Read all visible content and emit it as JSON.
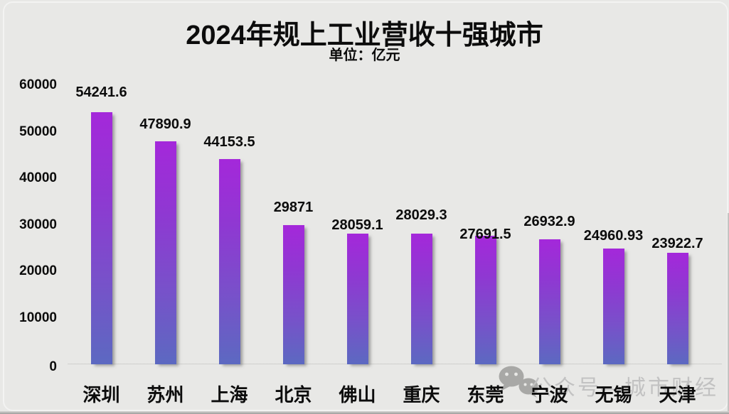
{
  "watermark": "公众号—城市财经",
  "chart_data": {
    "type": "bar",
    "title": "2024年规上工业营收十强城市",
    "subtitle": "单位：亿元",
    "unit": "亿元",
    "categories": [
      "深圳",
      "苏州",
      "上海",
      "北京",
      "佛山",
      "重庆",
      "东莞",
      "宁波",
      "无锡",
      "天津"
    ],
    "values": [
      54241.6,
      47890.9,
      44153.5,
      29871,
      28059.1,
      28029.3,
      27691.5,
      26932.9,
      24960.93,
      23922.7
    ],
    "value_labels": [
      "54241.6",
      "47890.9",
      "44153.5",
      "29871",
      "28059.1",
      "28029.3",
      "27691.5",
      "26932.9",
      "24960.93",
      "23922.7"
    ],
    "xlabel": "",
    "ylabel": "",
    "ylim": [
      0,
      60000
    ],
    "yticks": [
      0,
      10000,
      20000,
      30000,
      40000,
      50000,
      60000
    ],
    "ytick_labels": [
      "0",
      "10000",
      "20000",
      "30000",
      "40000",
      "50000",
      "60000"
    ],
    "grid": false,
    "legend": "none",
    "colors": {
      "bar_gradient_top": "#a428da",
      "bar_gradient_bottom": "#5c69c1",
      "background": "#e8e8e6",
      "text": "#0c0c0c",
      "watermark": "#c2c2c2"
    }
  }
}
